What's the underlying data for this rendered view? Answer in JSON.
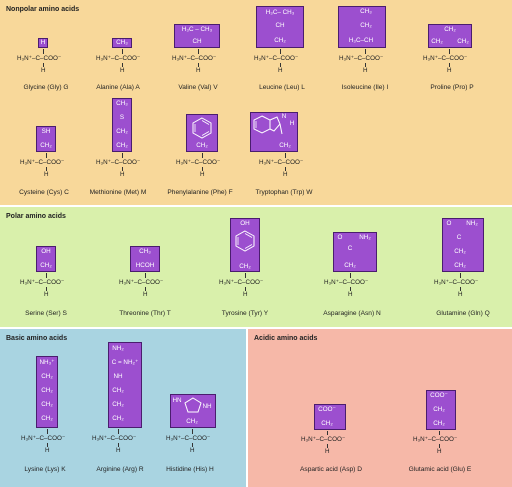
{
  "colors": {
    "nonpolar_bg": "#f8d89a",
    "polar_bg": "#d9f0ab",
    "basic_bg": "#a9d4e1",
    "acidic_bg": "#f6b8a8",
    "sidechain_fill": "#9c4fcf",
    "sidechain_text": "#ffffff"
  },
  "backbone": {
    "carbon_line": "H₃N⁺–C–COO⁻",
    "hydrogen": "H"
  },
  "panels": {
    "nonpolar": {
      "title": "Nonpolar amino acids",
      "row1": [
        {
          "name": "Glycine (Gly) G",
          "sidechain": [
            "H"
          ]
        },
        {
          "name": "Alanine (Ala) A",
          "sidechain": [
            "CH₃"
          ]
        },
        {
          "name": "Valine (Val) V",
          "sidechain": [
            "H₃C – CH₃",
            "CH"
          ]
        },
        {
          "name": "Leucine (Leu) L",
          "sidechain": [
            "H₃C– CH₃",
            "CH",
            "CH₂"
          ]
        },
        {
          "name": "Isoleucine (Ile) I",
          "sidechain": [
            "CH₃",
            "CH₂",
            "H₃C–CH"
          ]
        },
        {
          "name": "Proline (Pro) P",
          "sidechain": [
            "CH₂",
            "CH₂",
            "CH₂"
          ]
        }
      ],
      "row2": [
        {
          "name": "Cysteine (Cys) C",
          "sidechain": [
            "SH",
            "CH₂"
          ]
        },
        {
          "name": "Methionine (Met) M",
          "sidechain": [
            "CH₃",
            "S",
            "CH₂",
            "CH₂"
          ]
        },
        {
          "name": "Phenylalanine (Phe) F",
          "sidechain": [
            "CH₂"
          ]
        },
        {
          "name": "Tryptophan (Trp) W",
          "sidechain": [
            "N",
            "H",
            "CH₂"
          ]
        }
      ]
    },
    "polar": {
      "title": "Polar amino acids",
      "items": [
        {
          "name": "Serine (Ser) S",
          "sidechain": [
            "OH",
            "CH₂"
          ]
        },
        {
          "name": "Threonine (Thr) T",
          "sidechain": [
            "CH₃",
            "HCOH"
          ]
        },
        {
          "name": "Tyrosine (Tyr) Y",
          "sidechain": [
            "OH",
            "CH₂"
          ]
        },
        {
          "name": "Asparagine (Asn) N",
          "sidechain": [
            "O",
            "NH₂",
            "C",
            "CH₂"
          ]
        },
        {
          "name": "Glutamine (Gln) Q",
          "sidechain": [
            "O",
            "NH₂",
            "C",
            "CH₂",
            "CH₂"
          ]
        }
      ]
    },
    "basic": {
      "title": "Basic amino acids",
      "items": [
        {
          "name": "Lysine (Lys) K",
          "sidechain": [
            "NH₃⁺",
            "CH₂",
            "CH₂",
            "CH₂",
            "CH₂"
          ]
        },
        {
          "name": "Arginine (Arg) R",
          "sidechain": [
            "NH₂",
            "C = NH₂⁺",
            "NH",
            "CH₂",
            "CH₂",
            "CH₂"
          ]
        },
        {
          "name": "Histidine (His) H",
          "sidechain": [
            "HN",
            "NH",
            "CH₂"
          ]
        }
      ]
    },
    "acidic": {
      "title": "Acidic amino acids",
      "items": [
        {
          "name": "Aspartic acid (Asp) D",
          "sidechain": [
            "COO⁻",
            "CH₂"
          ]
        },
        {
          "name": "Glutamic acid (Glu) E",
          "sidechain": [
            "COO⁻",
            "CH₂",
            "CH₂"
          ]
        }
      ]
    }
  }
}
